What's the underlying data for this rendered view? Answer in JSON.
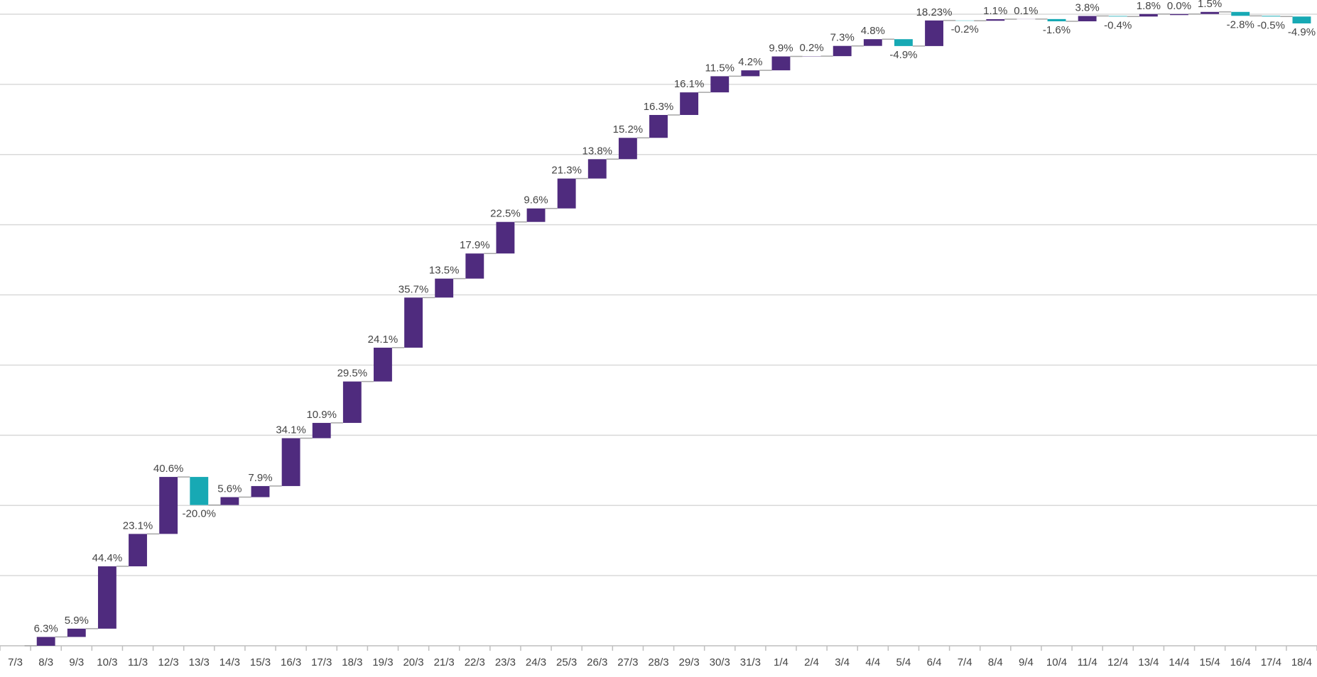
{
  "chart_data": {
    "type": "waterfall",
    "title": "",
    "xlabel": "",
    "ylabel": "",
    "gridlines": true,
    "legend": "none",
    "colors": {
      "increase": "#4f2b7e",
      "decrease": "#17a9b4",
      "connector": "#a6a6a6",
      "grid": "#d9d9d9"
    },
    "categories": [
      "7/3",
      "8/3",
      "9/3",
      "10/3",
      "11/3",
      "12/3",
      "13/3",
      "14/3",
      "15/3",
      "16/3",
      "17/3",
      "18/3",
      "19/3",
      "20/3",
      "21/3",
      "22/3",
      "23/3",
      "24/3",
      "25/3",
      "26/3",
      "27/3",
      "28/3",
      "29/3",
      "30/3",
      "31/3",
      "1/4",
      "2/4",
      "3/4",
      "4/4",
      "5/4",
      "6/4",
      "7/4",
      "8/4",
      "9/4",
      "10/4",
      "11/4",
      "12/4",
      "13/4",
      "14/4",
      "15/4",
      "16/4",
      "17/4",
      "18/4"
    ],
    "labels": [
      "",
      "6.3%",
      "5.9%",
      "44.4%",
      "23.1%",
      "40.6%",
      "-20.0%",
      "5.6%",
      "7.9%",
      "34.1%",
      "10.9%",
      "29.5%",
      "24.1%",
      "35.7%",
      "13.5%",
      "17.9%",
      "22.5%",
      "9.6%",
      "21.3%",
      "13.8%",
      "15.2%",
      "16.3%",
      "16.1%",
      "11.5%",
      "4.2%",
      "9.9%",
      "0.2%",
      "7.3%",
      "4.8%",
      "-4.9%",
      "18.23%",
      "-0.2%",
      "1.1%",
      "0.1%",
      "-1.6%",
      "3.8%",
      "-0.4%",
      "1.8%",
      "0.0%",
      "1.5%",
      "-2.8%",
      "-0.5%",
      "-4.9%"
    ],
    "values": [
      0,
      6.3,
      5.9,
      44.4,
      23.1,
      40.6,
      -20.0,
      5.6,
      7.9,
      34.1,
      10.9,
      29.5,
      24.1,
      35.7,
      13.5,
      17.9,
      22.5,
      9.6,
      21.3,
      13.8,
      15.2,
      16.3,
      16.1,
      11.5,
      4.2,
      9.9,
      0.2,
      7.3,
      4.8,
      -4.9,
      18.23,
      -0.2,
      1.1,
      0.1,
      -1.6,
      3.8,
      -0.4,
      1.8,
      0.0,
      1.5,
      -2.8,
      -0.5,
      -4.9
    ],
    "ylim": [
      0,
      450
    ]
  }
}
